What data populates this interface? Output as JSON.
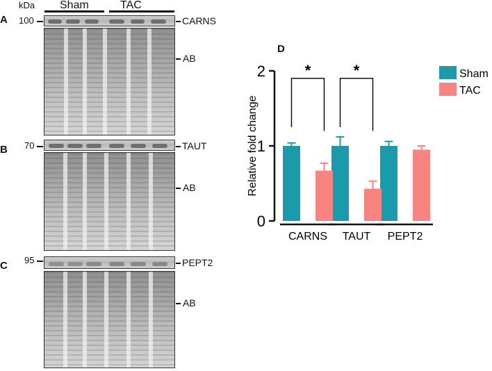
{
  "blots": {
    "kda_label": "kDa",
    "groups": [
      "Sham",
      "TAC"
    ],
    "panels": [
      {
        "letter": "A",
        "marker": "100",
        "protein": "CARNS",
        "loading": "AB"
      },
      {
        "letter": "B",
        "marker": "70",
        "protein": "TAUT",
        "loading": "AB"
      },
      {
        "letter": "C",
        "marker": "95",
        "protein": "PEPT2",
        "loading": "AB"
      }
    ]
  },
  "chart_data": {
    "panel_letter": "D",
    "type": "bar",
    "categories": [
      "CARNS",
      "TAUT",
      "PEPT2"
    ],
    "series": [
      {
        "name": "Sham",
        "color": "#1a9aaa",
        "values": [
          1.0,
          1.0,
          1.0
        ],
        "errors": [
          0.04,
          0.12,
          0.06
        ]
      },
      {
        "name": "TAC",
        "color": "#f88482",
        "values": [
          0.67,
          0.43,
          0.95
        ],
        "errors": [
          0.1,
          0.1,
          0.05
        ]
      }
    ],
    "ylabel": "Relative fold change",
    "ylim": [
      0,
      2
    ],
    "yticks": [
      "0",
      "1",
      "2"
    ],
    "significance": [
      "*",
      "*",
      ""
    ],
    "legend_position": "right"
  }
}
